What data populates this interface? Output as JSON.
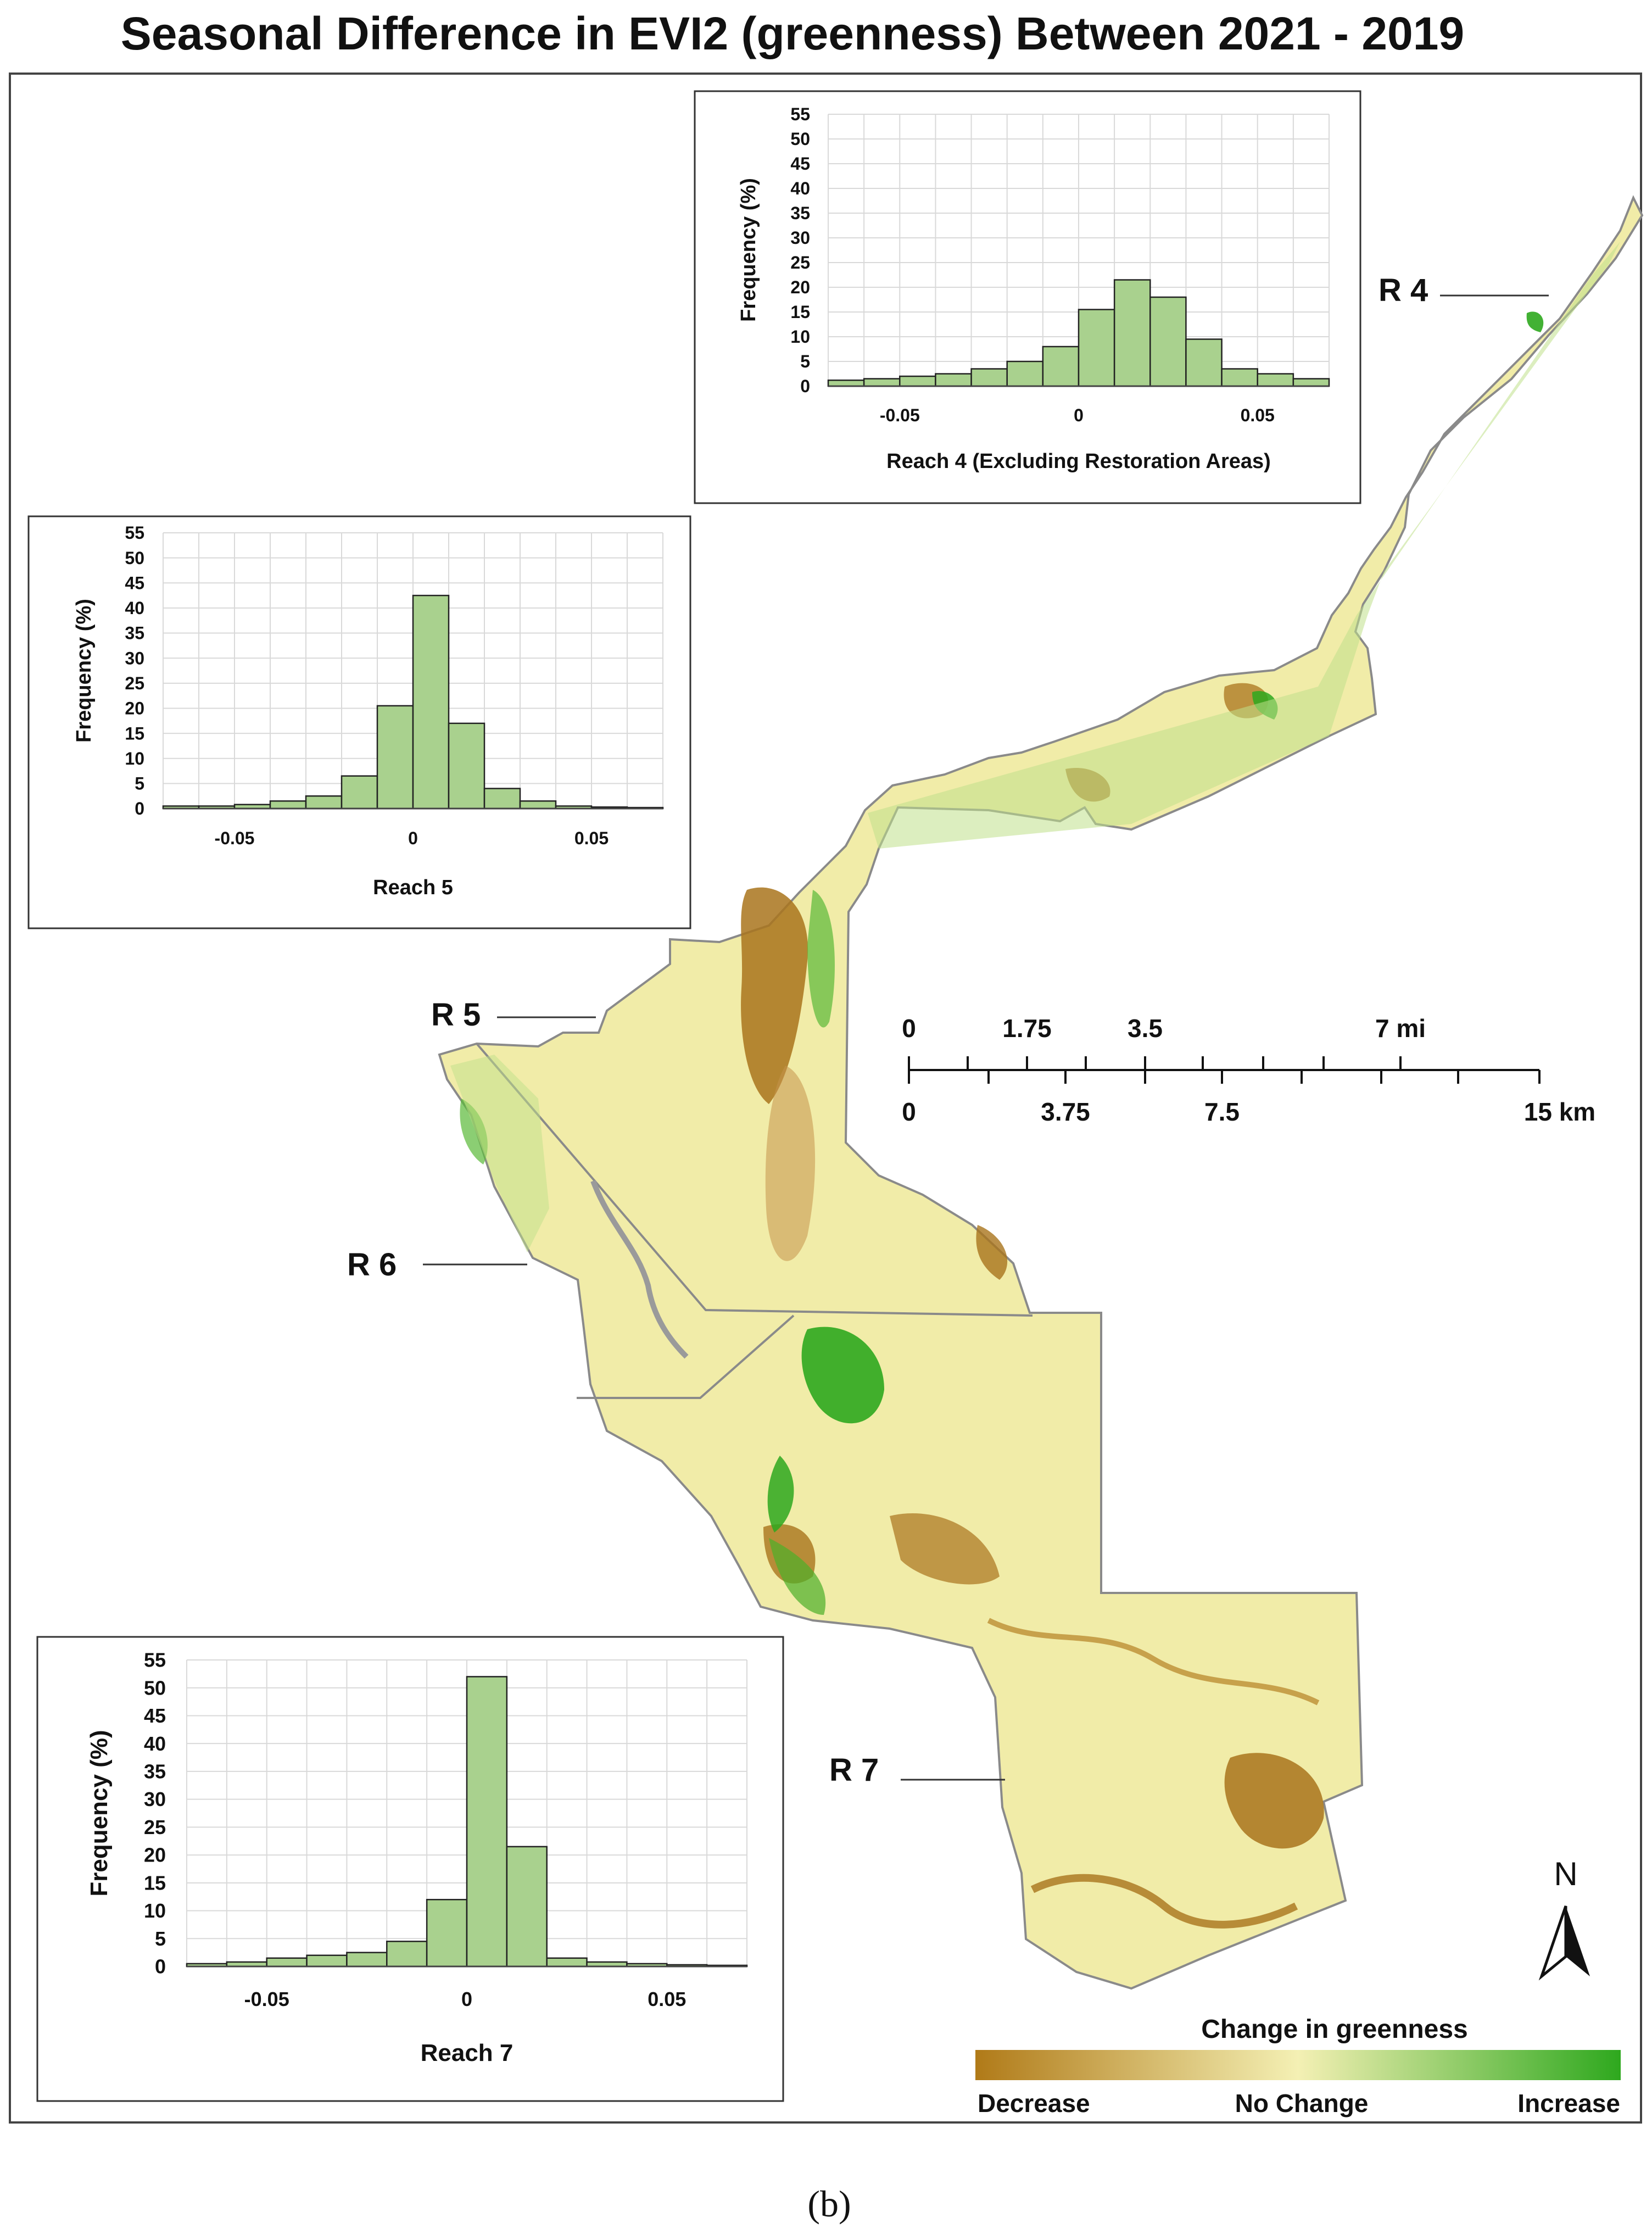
{
  "title": "Seasonal Difference in EVI2 (greenness) Between 2021 - 2019",
  "caption": "(b)",
  "reach_labels": [
    "R 4",
    "R 5",
    "R 6",
    "R 7"
  ],
  "scale_bar": {
    "mi_labels": [
      "0",
      "1.75",
      "3.5",
      "7 mi"
    ],
    "km_labels": [
      "0",
      "3.75",
      "7.5",
      "15 km"
    ]
  },
  "north_arrow": {
    "label": "N",
    "icon": "north-arrow-icon"
  },
  "legend": {
    "title": "Change in greenness",
    "labels": [
      "Decrease",
      "No Change",
      "Increase"
    ],
    "colors": [
      "#b07a18",
      "#f4f0b4",
      "#2ea81e"
    ]
  },
  "map_colors": {
    "base": "#f1eca8",
    "decrease": "#a9741c",
    "light_decrease": "#d6b170",
    "increase": "#4caf2a",
    "light_increase": "#bfe08a",
    "boundary": "#8a8a8a"
  },
  "chart_data": [
    {
      "type": "bar",
      "xlabel": "Reach 4 (Excluding Restoration Areas)",
      "ylabel": "Frequency (%)",
      "ylim": [
        0,
        55
      ],
      "yticks": [
        "0",
        "5",
        "10",
        "15",
        "20",
        "25",
        "30",
        "35",
        "40",
        "45",
        "50",
        "55"
      ],
      "xticks": [
        "-0.05",
        "0",
        "0.05"
      ],
      "xtick_values": [
        -0.05,
        0,
        0.05
      ],
      "xlim": [
        -0.07,
        0.07
      ],
      "bin_edges": [
        -0.07,
        -0.06,
        -0.05,
        -0.04,
        -0.03,
        -0.02,
        -0.01,
        0,
        0.01,
        0.02,
        0.03,
        0.04,
        0.05,
        0.06,
        0.07
      ],
      "values": [
        1.2,
        1.5,
        2,
        2.5,
        3.5,
        5,
        8,
        15.5,
        21.5,
        18,
        9.5,
        3.5,
        2.5,
        1.5
      ],
      "grid": true,
      "bar_color": "#a9d18e"
    },
    {
      "type": "bar",
      "xlabel": "Reach 5",
      "ylabel": "Frequency (%)",
      "ylim": [
        0,
        55
      ],
      "yticks": [
        "0",
        "5",
        "10",
        "15",
        "20",
        "25",
        "30",
        "35",
        "40",
        "45",
        "50",
        "55"
      ],
      "xticks": [
        "-0.05",
        "0",
        "0.05"
      ],
      "xtick_values": [
        -0.05,
        0,
        0.05
      ],
      "xlim": [
        -0.07,
        0.07
      ],
      "bin_edges": [
        -0.07,
        -0.06,
        -0.05,
        -0.04,
        -0.03,
        -0.02,
        -0.01,
        0,
        0.01,
        0.02,
        0.03,
        0.04,
        0.05,
        0.06,
        0.07
      ],
      "values": [
        0.5,
        0.5,
        0.8,
        1.5,
        2.5,
        6.5,
        20.5,
        42.5,
        17,
        4,
        1.5,
        0.5,
        0.3,
        0.2
      ],
      "grid": true,
      "bar_color": "#a9d18e"
    },
    {
      "type": "bar",
      "xlabel": "Reach 7",
      "ylabel": "Frequency (%)",
      "ylim": [
        0,
        55
      ],
      "yticks": [
        "0",
        "5",
        "10",
        "15",
        "20",
        "25",
        "30",
        "35",
        "40",
        "45",
        "50",
        "55"
      ],
      "xticks": [
        "-0.05",
        "0",
        "0.05"
      ],
      "xtick_values": [
        -0.05,
        0,
        0.05
      ],
      "xlim": [
        -0.07,
        0.07
      ],
      "bin_edges": [
        -0.07,
        -0.06,
        -0.05,
        -0.04,
        -0.03,
        -0.02,
        -0.01,
        0,
        0.01,
        0.02,
        0.03,
        0.04,
        0.05,
        0.06,
        0.07
      ],
      "values": [
        0.5,
        0.8,
        1.5,
        2,
        2.5,
        4.5,
        12,
        52,
        21.5,
        1.5,
        0.8,
        0.5,
        0.3,
        0.2
      ],
      "grid": true,
      "bar_color": "#a9d18e"
    }
  ]
}
